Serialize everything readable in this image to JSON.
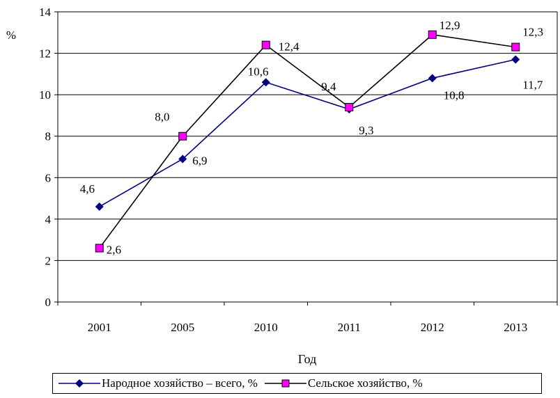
{
  "chart_data": {
    "type": "line",
    "categories": [
      "2001",
      "2005",
      "2010",
      "2011",
      "2012",
      "2013"
    ],
    "series": [
      {
        "name": "Народное хозяйство – всего, %",
        "values": [
          4.6,
          6.9,
          10.6,
          9.3,
          10.8,
          11.7
        ],
        "labels": [
          "4,6",
          "6,9",
          "10,6",
          "9,3",
          "10,8",
          "11,7"
        ],
        "color": "#000080",
        "marker": "diamond"
      },
      {
        "name": "Сельское хозяйство, %",
        "values": [
          2.6,
          8.0,
          12.4,
          9.4,
          12.9,
          12.3
        ],
        "labels": [
          "2,6",
          "8,0",
          "12,4",
          "9,4",
          "12,9",
          "12,3"
        ],
        "color": "#000000",
        "marker": "square",
        "marker_fill": "#ff00ff"
      }
    ],
    "yticks": [
      "0",
      "2",
      "4",
      "6",
      "8",
      "10",
      "12",
      "14"
    ],
    "ylim": [
      0,
      14
    ],
    "ylabel": "%",
    "xlabel": "Год",
    "grid": "horizontal",
    "legend_position": "bottom"
  }
}
